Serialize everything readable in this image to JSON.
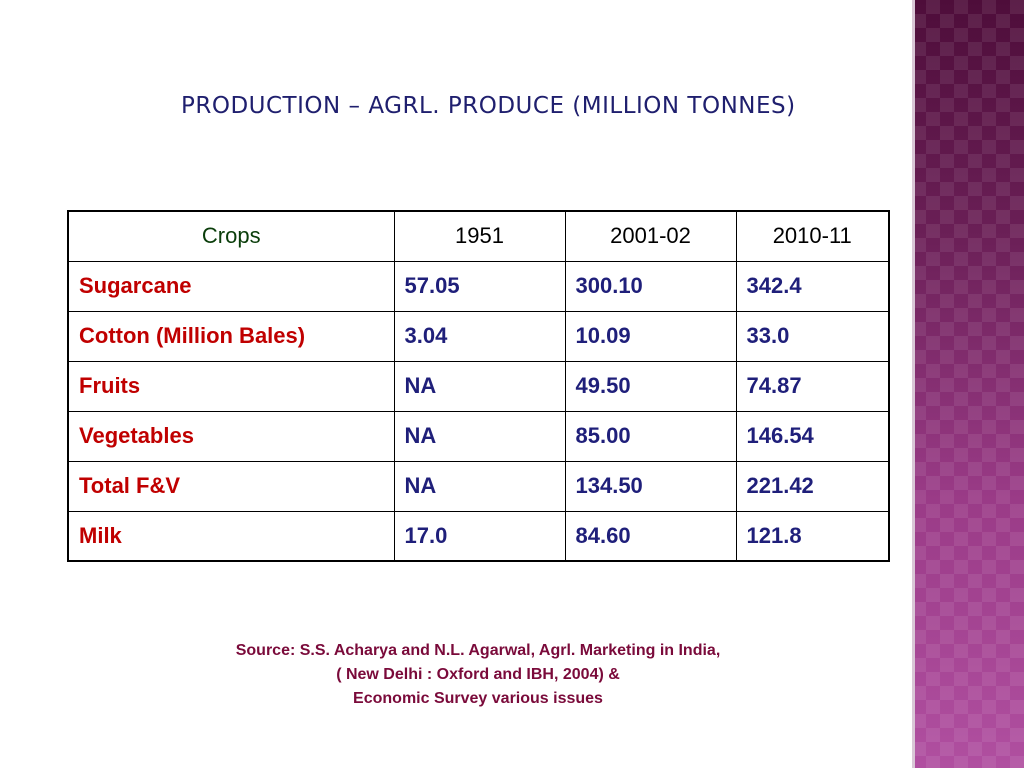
{
  "slide": {
    "title": "PRODUCTION – AGRL. PRODUCE (MILLION TONNES)"
  },
  "table": {
    "headers": [
      "Crops",
      "1951",
      "2001-02",
      "2010-11"
    ],
    "rows": [
      [
        "Sugarcane",
        "57.05",
        "300.10",
        "342.4"
      ],
      [
        "Cotton (Million Bales)",
        "3.04",
        "10.09",
        "33.0"
      ],
      [
        "Fruits",
        "NA",
        "49.50",
        "74.87"
      ],
      [
        "Vegetables",
        "NA",
        "85.00",
        "146.54"
      ],
      [
        "Total F&V",
        "NA",
        "134.50",
        "221.42"
      ],
      [
        "Milk",
        "17.0",
        "84.60",
        "121.8"
      ]
    ]
  },
  "source": {
    "line1": "Source: S.S. Acharya and N.L. Agarwal, Agrl. Marketing in India,",
    "line2": "( New Delhi : Oxford and IBH, 2004) &",
    "line3": "Economic Survey various issues"
  },
  "colors": {
    "title": "#1f1f6e",
    "crop_name": "#c00000",
    "values": "#1f1f7a",
    "source": "#7a0a3a",
    "side_band": "#6a1f56"
  }
}
